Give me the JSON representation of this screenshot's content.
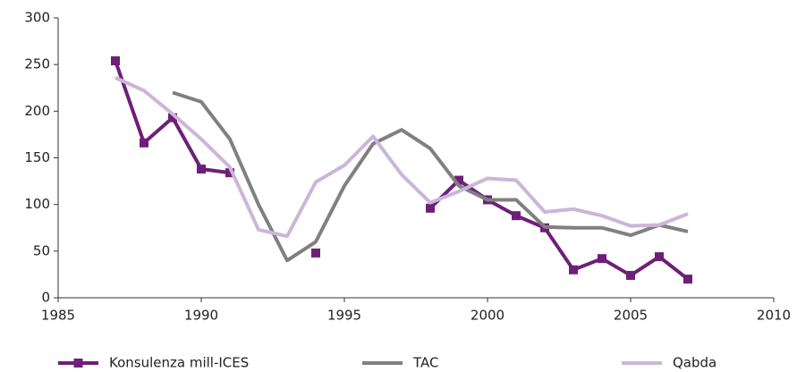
{
  "chart_data": {
    "type": "line",
    "x": [
      1987,
      1988,
      1989,
      1990,
      1991,
      1992,
      1993,
      1994,
      1995,
      1996,
      1997,
      1998,
      1999,
      2000,
      2001,
      2002,
      2003,
      2004,
      2005,
      2006,
      2007
    ],
    "series": [
      {
        "name": "Konsulenza mill-ICES",
        "color": "#6d2077",
        "marker": "square",
        "values": [
          254,
          166,
          193,
          138,
          134,
          null,
          null,
          48,
          null,
          null,
          null,
          96,
          126,
          105,
          88,
          75,
          30,
          42,
          24,
          44,
          20
        ]
      },
      {
        "name": "TAC",
        "color": "#808080",
        "values": [
          null,
          null,
          220,
          210,
          170,
          100,
          40,
          60,
          120,
          165,
          180,
          160,
          120,
          105,
          105,
          76,
          75,
          75,
          67,
          78,
          71
        ]
      },
      {
        "name": "Qabda",
        "color": "#cdb5d9",
        "values": [
          236,
          222,
          197,
          170,
          140,
          73,
          66,
          124,
          142,
          173,
          132,
          102,
          114,
          128,
          126,
          92,
          95,
          88,
          77,
          78,
          90
        ]
      }
    ],
    "xlim": [
      1985,
      2010
    ],
    "xticks": [
      1985,
      1990,
      1995,
      2000,
      2005,
      2010
    ],
    "ylim": [
      0,
      300
    ],
    "yticks": [
      0,
      50,
      100,
      150,
      200,
      250,
      300
    ],
    "grid": false,
    "legend": "bottom"
  }
}
